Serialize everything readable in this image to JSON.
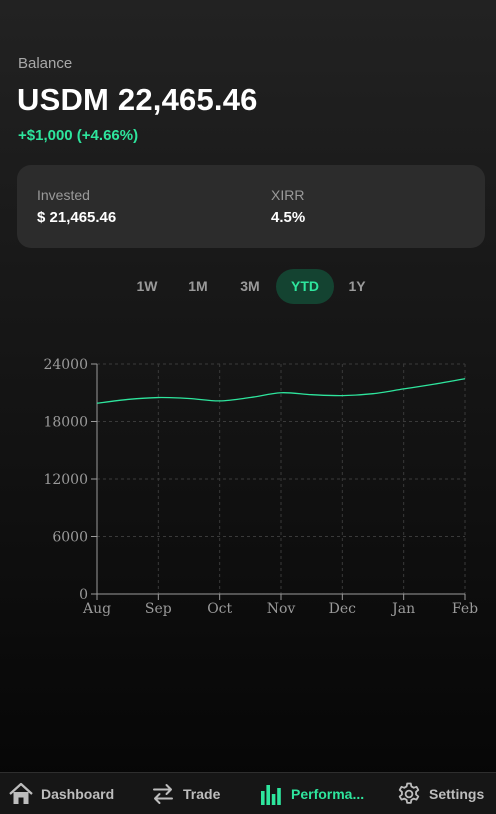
{
  "balance": {
    "label": "Balance",
    "value": "USDM 22,465.46",
    "change": "+$1,000 (+4.66%)"
  },
  "summary": {
    "invested_label": "Invested",
    "invested_value": "$ 21,465.46",
    "xirr_label": "XIRR",
    "xirr_value": "4.5%"
  },
  "range_tabs": [
    {
      "label": "1W",
      "active": false
    },
    {
      "label": "1M",
      "active": false
    },
    {
      "label": "3M",
      "active": false
    },
    {
      "label": "YTD",
      "active": true
    },
    {
      "label": "1Y",
      "active": false
    }
  ],
  "chart_data": {
    "type": "line",
    "categories": [
      "Aug",
      "Sep",
      "Oct",
      "Nov",
      "Dec",
      "Jan",
      "Feb"
    ],
    "yticks": [
      0,
      6000,
      12000,
      18000,
      24000
    ],
    "ylim": [
      0,
      24000
    ],
    "grid": true,
    "series": [
      {
        "color": "#2ee59d",
        "points": [
          [
            0,
            19900
          ],
          [
            0.5,
            20300
          ],
          [
            1,
            20500
          ],
          [
            1.5,
            20400
          ],
          [
            2,
            20150
          ],
          [
            2.5,
            20500
          ],
          [
            3,
            21000
          ],
          [
            3.5,
            20800
          ],
          [
            4,
            20700
          ],
          [
            4.5,
            20900
          ],
          [
            5,
            21400
          ],
          [
            5.5,
            21900
          ],
          [
            6,
            22465
          ]
        ]
      }
    ]
  },
  "nav": [
    {
      "label": "Dashboard",
      "icon": "home-icon",
      "active": false
    },
    {
      "label": "Trade",
      "icon": "swap-arrows-icon",
      "active": false
    },
    {
      "label": "Performa...",
      "icon": "bar-chart-icon",
      "active": true
    },
    {
      "label": "Settings",
      "icon": "gear-icon",
      "active": false
    }
  ],
  "colors": {
    "accent": "#2ee59d",
    "accent_bg": "#144331",
    "card": "#2c2c2c"
  }
}
